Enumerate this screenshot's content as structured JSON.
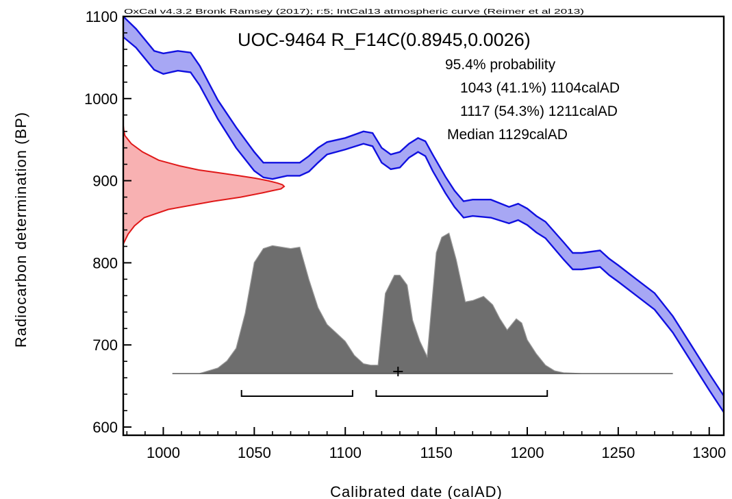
{
  "chart_data": {
    "type": "area",
    "header": "OxCal v4.3.2 Bronk Ramsey (2017); r:5; IntCal13 atmospheric curve (Reimer et al 2013)",
    "title": "UOC-9464 R_F14C(0.8945,0.0026)",
    "probability_label": "95.4% probability",
    "ranges": [
      {
        "text": "1043 (41.1%) 1104calAD",
        "from": 1043,
        "to": 1104,
        "percent": 41.1
      },
      {
        "text": "1117 (54.3%) 1211calAD",
        "from": 1117,
        "to": 1211,
        "percent": 54.3
      }
    ],
    "median_label": "Median 1129calAD",
    "median": 1129,
    "xlabel": "Calibrated date (calAD)",
    "ylabel": "Radiocarbon determination (BP)",
    "xlim": [
      978,
      1308
    ],
    "ylim": [
      590,
      1100
    ],
    "x_ticks": [
      1000,
      1050,
      1100,
      1150,
      1200,
      1250,
      1300
    ],
    "y_ticks": [
      600,
      700,
      800,
      900,
      1000,
      1100
    ],
    "colors": {
      "calibration_curve": "#1010e0",
      "calibration_fill": "#a7a7f4",
      "measurement": "#e01818",
      "measurement_fill": "#f7a9aa",
      "posterior": "#6e6e6e",
      "posterior_edge": "#9a9a9a"
    },
    "calibration_curve": {
      "name": "IntCal13",
      "x": [
        978,
        985,
        995,
        1000,
        1008,
        1015,
        1020,
        1030,
        1040,
        1050,
        1055,
        1060,
        1068,
        1075,
        1080,
        1085,
        1090,
        1100,
        1110,
        1115,
        1120,
        1125,
        1130,
        1135,
        1140,
        1144,
        1148,
        1155,
        1160,
        1165,
        1170,
        1180,
        1190,
        1195,
        1200,
        1205,
        1210,
        1220,
        1225,
        1230,
        1240,
        1245,
        1250,
        1260,
        1270,
        1280,
        1290,
        1300,
        1308
      ],
      "upper": [
        1100,
        1085,
        1058,
        1055,
        1058,
        1056,
        1040,
        998,
        965,
        935,
        922,
        922,
        922,
        922,
        930,
        940,
        947,
        952,
        960,
        958,
        940,
        932,
        935,
        945,
        952,
        948,
        932,
        905,
        888,
        875,
        877,
        877,
        868,
        872,
        866,
        857,
        850,
        825,
        812,
        812,
        815,
        805,
        797,
        780,
        763,
        735,
        700,
        665,
        638
      ],
      "lower": [
        1075,
        1062,
        1035,
        1030,
        1034,
        1032,
        1016,
        975,
        940,
        912,
        904,
        902,
        906,
        906,
        911,
        922,
        932,
        938,
        945,
        942,
        922,
        914,
        916,
        928,
        935,
        930,
        912,
        885,
        868,
        855,
        857,
        855,
        848,
        852,
        846,
        837,
        830,
        804,
        792,
        792,
        795,
        785,
        777,
        760,
        743,
        715,
        680,
        645,
        618
      ]
    },
    "measurement": {
      "bp": [
        823,
        835,
        845,
        855,
        865,
        875,
        880,
        885,
        888,
        890,
        893,
        895,
        897,
        900,
        903,
        906,
        910,
        913,
        918,
        925,
        935,
        945,
        950,
        955,
        962,
        967
      ],
      "density": [
        0,
        0.03,
        0.07,
        0.13,
        0.28,
        0.56,
        0.73,
        0.86,
        0.93,
        0.98,
        1.0,
        0.99,
        0.96,
        0.9,
        0.82,
        0.72,
        0.58,
        0.47,
        0.35,
        0.22,
        0.12,
        0.05,
        0.03,
        0.01,
        0.003,
        0
      ]
    },
    "posterior": {
      "x": [
        1005,
        1020,
        1030,
        1035,
        1040,
        1045,
        1050,
        1055,
        1060,
        1065,
        1070,
        1075,
        1080,
        1085,
        1090,
        1095,
        1100,
        1105,
        1110,
        1114,
        1118,
        1122,
        1127,
        1130,
        1134,
        1137,
        1141,
        1145,
        1150,
        1153,
        1157,
        1161,
        1166,
        1170,
        1176,
        1181,
        1185,
        1189,
        1194,
        1197,
        1200,
        1205,
        1210,
        1215,
        1220,
        1230,
        1280
      ],
      "density": [
        0,
        0.001,
        0.04,
        0.09,
        0.18,
        0.43,
        0.79,
        0.89,
        0.91,
        0.9,
        0.89,
        0.9,
        0.67,
        0.47,
        0.35,
        0.29,
        0.23,
        0.13,
        0.07,
        0.06,
        0.06,
        0.57,
        0.7,
        0.7,
        0.63,
        0.38,
        0.23,
        0.12,
        0.86,
        0.97,
        1.0,
        0.81,
        0.51,
        0.52,
        0.55,
        0.49,
        0.39,
        0.31,
        0.39,
        0.36,
        0.24,
        0.14,
        0.06,
        0.02,
        0.006,
        0,
        0
      ]
    }
  }
}
